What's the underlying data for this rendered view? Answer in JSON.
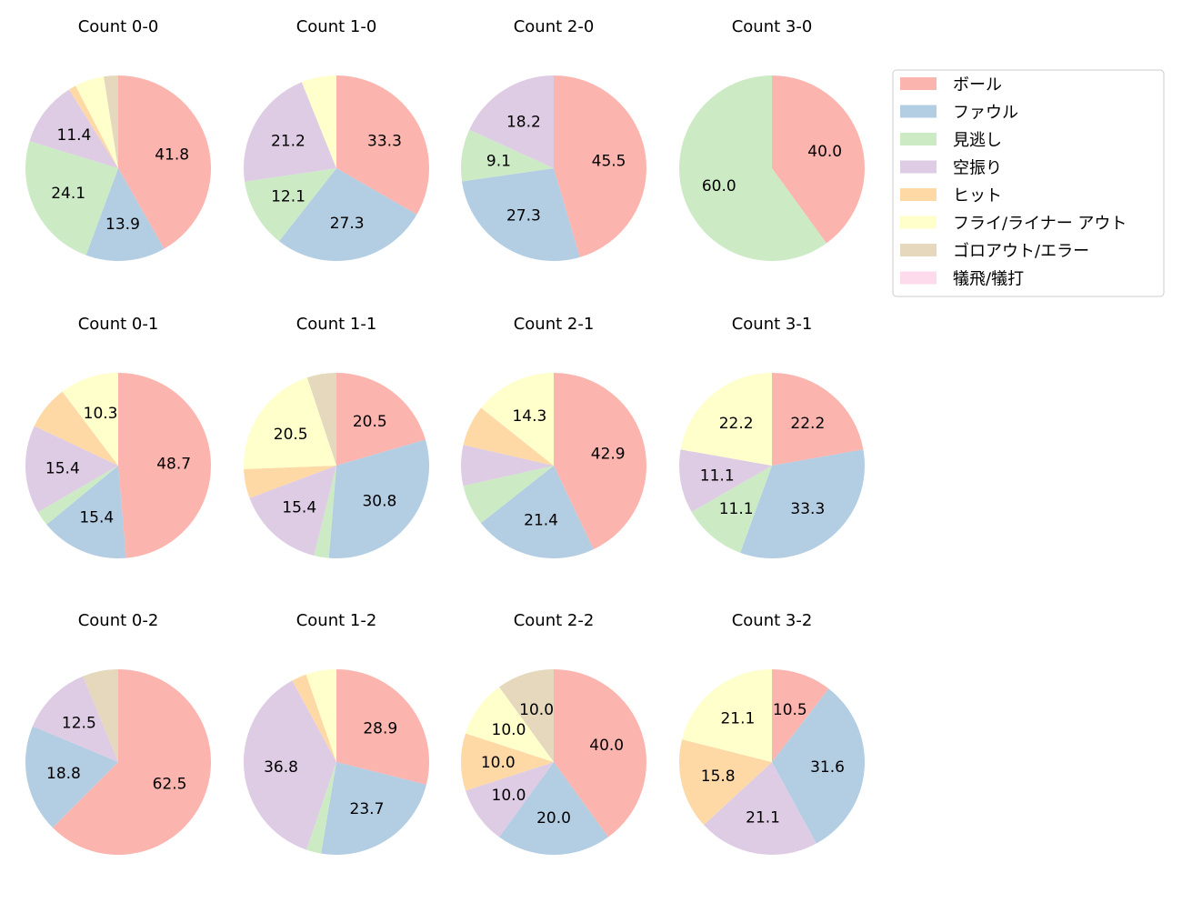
{
  "chart_data": {
    "type": "pie",
    "categories": [
      "ボール",
      "ファウル",
      "見逃し",
      "空振り",
      "ヒット",
      "フライ/ライナー アウト",
      "ゴロアウト/エラー",
      "犠飛/犠打"
    ],
    "colors": [
      "#fbb4ae",
      "#b3cde3",
      "#ccebc5",
      "#decbe4",
      "#fed9a6",
      "#ffffcc",
      "#e5d8bd",
      "#fddaec"
    ],
    "legend_placement": "top-right",
    "start": "top, clockwise",
    "charts": [
      {
        "title": "Count 0-0",
        "values": [
          41.8,
          13.9,
          24.1,
          11.4,
          1.3,
          5.1,
          2.5,
          0
        ],
        "labels": [
          "41.8",
          "13.9",
          "24.1",
          "11.4",
          "",
          "",
          "",
          ""
        ]
      },
      {
        "title": "Count 1-0",
        "values": [
          33.3,
          27.3,
          12.1,
          21.2,
          0,
          6.1,
          0,
          0
        ],
        "labels": [
          "33.3",
          "27.3",
          "12.1",
          "21.2",
          "",
          "",
          "",
          ""
        ]
      },
      {
        "title": "Count 2-0",
        "values": [
          45.5,
          27.3,
          9.1,
          18.2,
          0,
          0,
          0,
          0
        ],
        "labels": [
          "45.5",
          "27.3",
          "9.1",
          "18.2",
          "",
          "",
          "",
          ""
        ]
      },
      {
        "title": "Count 3-0",
        "values": [
          40.0,
          0,
          60.0,
          0,
          0,
          0,
          0,
          0
        ],
        "labels": [
          "40.0",
          "",
          "60.0",
          "",
          "",
          "",
          "",
          ""
        ]
      },
      {
        "title": "Count 0-1",
        "values": [
          48.7,
          15.4,
          2.6,
          15.4,
          7.7,
          10.3,
          0,
          0
        ],
        "labels": [
          "48.7",
          "15.4",
          "",
          "15.4",
          "",
          "10.3",
          "",
          ""
        ]
      },
      {
        "title": "Count 1-1",
        "values": [
          20.5,
          30.8,
          2.6,
          15.4,
          5.1,
          20.5,
          5.1,
          0
        ],
        "labels": [
          "20.5",
          "30.8",
          "",
          "15.4",
          "",
          "20.5",
          "",
          ""
        ]
      },
      {
        "title": "Count 2-1",
        "values": [
          42.9,
          21.4,
          7.1,
          7.1,
          7.1,
          14.3,
          0,
          0
        ],
        "labels": [
          "42.9",
          "21.4",
          "",
          "",
          "",
          "14.3",
          "",
          ""
        ]
      },
      {
        "title": "Count 3-1",
        "values": [
          22.2,
          33.3,
          11.1,
          11.1,
          0,
          22.2,
          0,
          0
        ],
        "labels": [
          "22.2",
          "33.3",
          "11.1",
          "11.1",
          "",
          "22.2",
          "",
          ""
        ]
      },
      {
        "title": "Count 0-2",
        "values": [
          62.5,
          18.8,
          0,
          12.5,
          0,
          0,
          6.2,
          0
        ],
        "labels": [
          "62.5",
          "18.8",
          "",
          "12.5",
          "",
          "",
          "",
          ""
        ]
      },
      {
        "title": "Count 1-2",
        "values": [
          28.9,
          23.7,
          2.6,
          36.8,
          2.6,
          5.3,
          0,
          0
        ],
        "labels": [
          "28.9",
          "23.7",
          "",
          "36.8",
          "",
          "",
          "",
          ""
        ]
      },
      {
        "title": "Count 2-2",
        "values": [
          40.0,
          20.0,
          0,
          10.0,
          10.0,
          10.0,
          10.0,
          0
        ],
        "labels": [
          "40.0",
          "20.0",
          "",
          "10.0",
          "10.0",
          "10.0",
          "10.0",
          ""
        ]
      },
      {
        "title": "Count 3-2",
        "values": [
          10.5,
          31.6,
          0,
          21.1,
          15.8,
          21.1,
          0,
          0
        ],
        "labels": [
          "10.5",
          "31.6",
          "",
          "21.1",
          "15.8",
          "21.1",
          "",
          ""
        ]
      }
    ]
  }
}
